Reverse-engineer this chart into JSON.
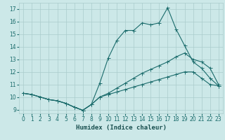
{
  "xlabel": "Humidex (Indice chaleur)",
  "xlim": [
    -0.5,
    23.5
  ],
  "ylim": [
    8.7,
    17.5
  ],
  "xticks": [
    0,
    1,
    2,
    3,
    4,
    5,
    6,
    7,
    8,
    9,
    10,
    11,
    12,
    13,
    14,
    15,
    16,
    17,
    18,
    19,
    20,
    21,
    22,
    23
  ],
  "yticks": [
    9,
    10,
    11,
    12,
    13,
    14,
    15,
    16,
    17
  ],
  "background_color": "#cce8e8",
  "grid_color": "#aacccc",
  "line_color": "#1a6b6b",
  "line1_x": [
    0,
    1,
    2,
    3,
    4,
    5,
    6,
    7,
    8,
    9,
    10,
    11,
    12,
    13,
    14,
    15,
    16,
    17,
    18,
    19,
    20,
    21,
    22,
    23
  ],
  "line1_y": [
    10.3,
    10.2,
    10.0,
    9.8,
    9.7,
    9.5,
    9.2,
    8.95,
    9.4,
    11.1,
    13.1,
    14.5,
    15.3,
    15.3,
    15.9,
    15.75,
    15.9,
    17.1,
    15.4,
    14.1,
    12.8,
    12.3,
    11.5,
    10.9
  ],
  "line2_x": [
    0,
    1,
    2,
    3,
    4,
    5,
    6,
    7,
    8,
    9,
    10,
    11,
    12,
    13,
    14,
    15,
    16,
    17,
    18,
    19,
    20,
    21,
    22,
    23
  ],
  "line2_y": [
    10.3,
    10.2,
    10.0,
    9.8,
    9.7,
    9.5,
    9.2,
    8.95,
    9.4,
    10.0,
    10.3,
    10.7,
    11.1,
    11.5,
    11.9,
    12.2,
    12.5,
    12.8,
    13.2,
    13.5,
    13.0,
    12.8,
    12.3,
    11.0
  ],
  "line3_x": [
    0,
    1,
    2,
    3,
    4,
    5,
    6,
    7,
    8,
    9,
    10,
    11,
    12,
    13,
    14,
    15,
    16,
    17,
    18,
    19,
    20,
    21,
    22,
    23
  ],
  "line3_y": [
    10.3,
    10.2,
    10.0,
    9.8,
    9.7,
    9.5,
    9.2,
    8.95,
    9.4,
    10.0,
    10.2,
    10.4,
    10.6,
    10.8,
    11.0,
    11.2,
    11.4,
    11.6,
    11.8,
    12.0,
    12.0,
    11.5,
    11.0,
    10.9
  ],
  "xlabel_color": "#1a5050",
  "xlabel_fontsize": 6.5,
  "tick_fontsize": 5.5,
  "marker_size": 1.8,
  "line_width": 0.8
}
